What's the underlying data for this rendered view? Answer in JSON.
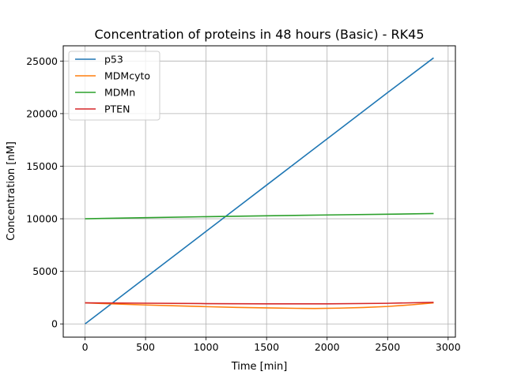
{
  "chart_data": {
    "type": "line",
    "title": "Concentration of proteins in 48 hours (Basic) - RK45",
    "xlabel": "Time [min]",
    "ylabel": "Concentration [nM]",
    "xlim": [
      -180,
      3060
    ],
    "ylim": [
      -1260,
      26450
    ],
    "xticks": [
      0,
      500,
      1000,
      1500,
      2000,
      2500,
      3000
    ],
    "yticks": [
      0,
      5000,
      10000,
      15000,
      20000,
      25000
    ],
    "grid": true,
    "legend_position": "top-left",
    "series": [
      {
        "name": "p53",
        "color": "#1f77b4",
        "x": [
          0,
          500,
          1000,
          1500,
          2000,
          2500,
          2880
        ],
        "y": [
          0,
          4400,
          8800,
          13200,
          17600,
          22000,
          25300
        ]
      },
      {
        "name": "MDMcyto",
        "color": "#ff7f0e",
        "x": [
          0,
          250,
          500,
          750,
          1000,
          1250,
          1500,
          1750,
          1900,
          2100,
          2300,
          2500,
          2700,
          2880
        ],
        "y": [
          2000,
          1900,
          1800,
          1720,
          1640,
          1570,
          1520,
          1480,
          1470,
          1500,
          1560,
          1660,
          1820,
          2000
        ]
      },
      {
        "name": "MDMn",
        "color": "#2ca02c",
        "x": [
          0,
          500,
          1000,
          1500,
          2000,
          2500,
          2880
        ],
        "y": [
          10000,
          10100,
          10200,
          10280,
          10360,
          10430,
          10500
        ]
      },
      {
        "name": "PTEN",
        "color": "#d62728",
        "x": [
          0,
          500,
          1000,
          1500,
          2000,
          2500,
          2880
        ],
        "y": [
          2000,
          1970,
          1930,
          1910,
          1910,
          1960,
          2050
        ]
      }
    ]
  }
}
